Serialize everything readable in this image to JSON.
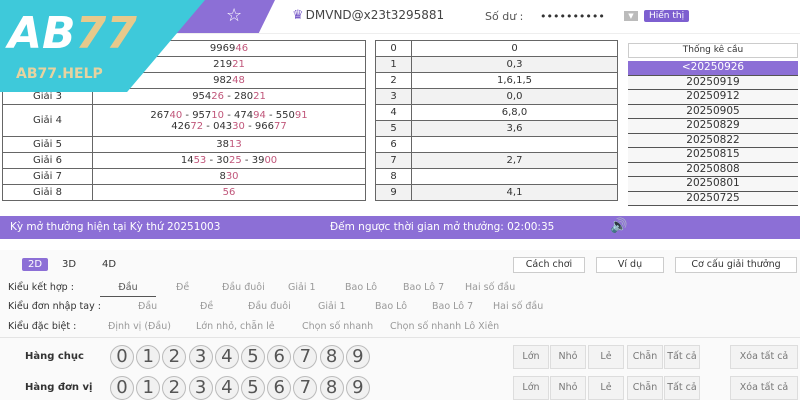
{
  "header": {
    "user": "DMVND@x23t3295881",
    "balance_label": "Số dư :",
    "balance_masked": "••••••••••",
    "show_label": "Hiển thị"
  },
  "logo": {
    "text": "AB77",
    "site": "AB77.HELP"
  },
  "results": [
    {
      "label": "",
      "pre": "9969",
      "suf": "46"
    },
    {
      "label": "",
      "pre": "219",
      "suf": "21"
    },
    {
      "label": "",
      "pre": "982",
      "suf": "48"
    },
    {
      "label": "Giải 3",
      "nums": [
        [
          "954",
          "26"
        ],
        [
          "280",
          "21"
        ]
      ]
    },
    {
      "label": "Giải 4",
      "nums": [
        [
          "267",
          "40"
        ],
        [
          "957",
          "10"
        ],
        [
          "474",
          "94"
        ],
        [
          "550",
          "91"
        ],
        [
          "426",
          "72"
        ],
        [
          "043",
          "30"
        ],
        [
          "966",
          "77"
        ]
      ]
    },
    {
      "label": "Giải 5",
      "nums": [
        [
          "38",
          "13"
        ]
      ]
    },
    {
      "label": "Giải 6",
      "nums": [
        [
          "14",
          "53"
        ],
        [
          "30",
          "25"
        ],
        [
          "39",
          "00"
        ]
      ]
    },
    {
      "label": "Giải 7",
      "nums": [
        [
          "8",
          "30"
        ]
      ]
    },
    {
      "label": "Giải 8",
      "nums": [
        [
          "",
          "56"
        ]
      ]
    }
  ],
  "digits": [
    [
      "0",
      "0"
    ],
    [
      "1",
      "0,3"
    ],
    [
      "2",
      "1,6,1,5"
    ],
    [
      "3",
      "0,0"
    ],
    [
      "4",
      "6,8,0"
    ],
    [
      "5",
      "3,6"
    ],
    [
      "6",
      ""
    ],
    [
      "7",
      "2,7"
    ],
    [
      "8",
      ""
    ],
    [
      "9",
      "4,1"
    ]
  ],
  "stats": {
    "button": "Thống kê cầu",
    "dates": [
      "<20250926",
      "20250919",
      "20250912",
      "20250905",
      "20250829",
      "20250822",
      "20250815",
      "20250808",
      "20250801",
      "20250725"
    ]
  },
  "bar": {
    "current": "Kỳ mở thưởng hiện tại Kỳ thứ 20251003",
    "countdown": "Đếm ngược thời gian mở thưởng: 02:00:35"
  },
  "tabs": [
    "2D",
    "3D",
    "4D"
  ],
  "buttons": [
    "Cách chơi",
    "Ví dụ",
    "Cơ cấu giải thưởng"
  ],
  "kieu_ket_hop": {
    "label": "Kiểu kết hợp :",
    "options": [
      "Đầu",
      "Đề",
      "Đầu đuôi",
      "Giải 1",
      "Bao Lô",
      "Bao Lô 7",
      "Hai số đầu"
    ]
  },
  "kieu_nhap_tay": {
    "label": "Kiểu đơn nhập tay :",
    "options": [
      "Đầu",
      "Đề",
      "Đầu đuôi",
      "Giải 1",
      "Bao Lô",
      "Bao Lô 7",
      "Hai số đầu"
    ]
  },
  "kieu_dac_biet": {
    "label": "Kiểu đặc biệt :",
    "options": [
      "Định vị (Đầu)",
      "Lớn nhỏ, chẵn lẻ",
      "Chọn số nhanh",
      "Chọn số nhanh Lô Xiên"
    ]
  },
  "pick_rows": [
    "Hàng chục",
    "Hàng đơn vị"
  ],
  "balls": [
    "0",
    "1",
    "2",
    "3",
    "4",
    "5",
    "6",
    "7",
    "8",
    "9"
  ],
  "quick": [
    "Lớn",
    "Nhỏ",
    "Lẻ",
    "Chẵn",
    "Tất cả",
    "Xóa tất cả"
  ],
  "colors": {
    "accent": "#8c6fd6",
    "highlight": "#c0567a",
    "logo": "#3ec9da"
  }
}
